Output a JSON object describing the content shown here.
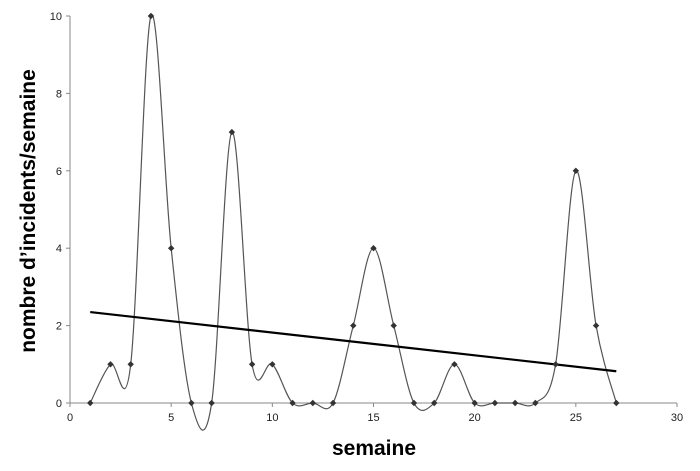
{
  "chart_data": {
    "type": "line",
    "title": "",
    "xlabel": "semaine",
    "ylabel": "nombre d’incidents/semaine",
    "xlim": [
      0,
      30
    ],
    "ylim": [
      0,
      10
    ],
    "xticks": [
      0,
      5,
      10,
      15,
      20,
      25,
      30
    ],
    "yticks": [
      0,
      2,
      4,
      6,
      8,
      10
    ],
    "grid": false,
    "legend": "none",
    "series": [
      {
        "style": "smoothed line with diamond markers",
        "color": "#555555",
        "x": [
          1,
          2,
          3,
          4,
          5,
          6,
          7,
          8,
          9,
          10,
          11,
          12,
          13,
          14,
          15,
          16,
          17,
          18,
          19,
          20,
          21,
          22,
          23,
          24,
          25,
          26,
          27
        ],
        "values": [
          0,
          1,
          1,
          10,
          4,
          0,
          0,
          7,
          1,
          1,
          0,
          0,
          0,
          2,
          4,
          2,
          0,
          0,
          1,
          0,
          0,
          0,
          0,
          1,
          6,
          2,
          0
        ]
      },
      {
        "style": "linear trend line",
        "color": "#000000",
        "x": [
          1,
          27
        ],
        "values": [
          2.35,
          0.82
        ]
      }
    ]
  }
}
